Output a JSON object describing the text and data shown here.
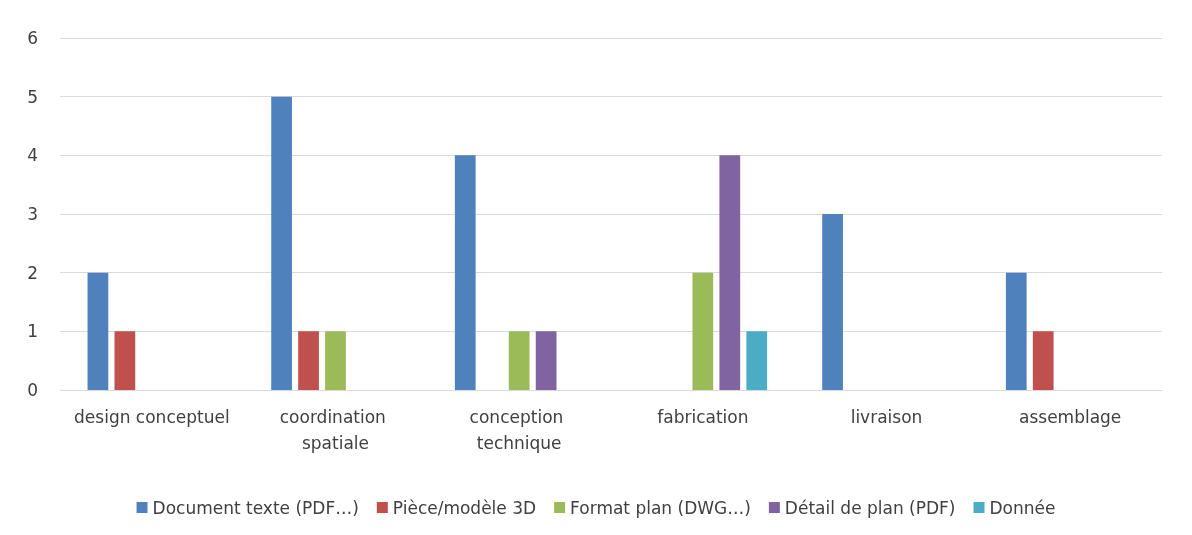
{
  "chart_data": {
    "type": "bar",
    "categories": [
      "design conceptuel",
      "coordination spatiale",
      "conception technique",
      "fabrication",
      "livraison",
      "assemblage"
    ],
    "series": [
      {
        "name": "Document texte (PDF…)",
        "color": "#4f81bd",
        "values": [
          2,
          5,
          4,
          0,
          3,
          2
        ]
      },
      {
        "name": "Pièce/modèle 3D",
        "color": "#c0504d",
        "values": [
          1,
          1,
          0,
          0,
          0,
          1
        ]
      },
      {
        "name": "Format plan (DWG…)",
        "color": "#9bbb59",
        "values": [
          0,
          1,
          1,
          2,
          0,
          0
        ]
      },
      {
        "name": "Détail de plan (PDF)",
        "color": "#8064a2",
        "values": [
          0,
          0,
          1,
          4,
          0,
          0
        ]
      },
      {
        "name": "Donnée",
        "color": "#4bacc6",
        "values": [
          0,
          0,
          0,
          1,
          0,
          0
        ]
      }
    ],
    "ylim": [
      0,
      6
    ],
    "yticks": [
      0,
      1,
      2,
      3,
      4,
      5,
      6
    ],
    "grid": "y",
    "legend": "bottom"
  }
}
